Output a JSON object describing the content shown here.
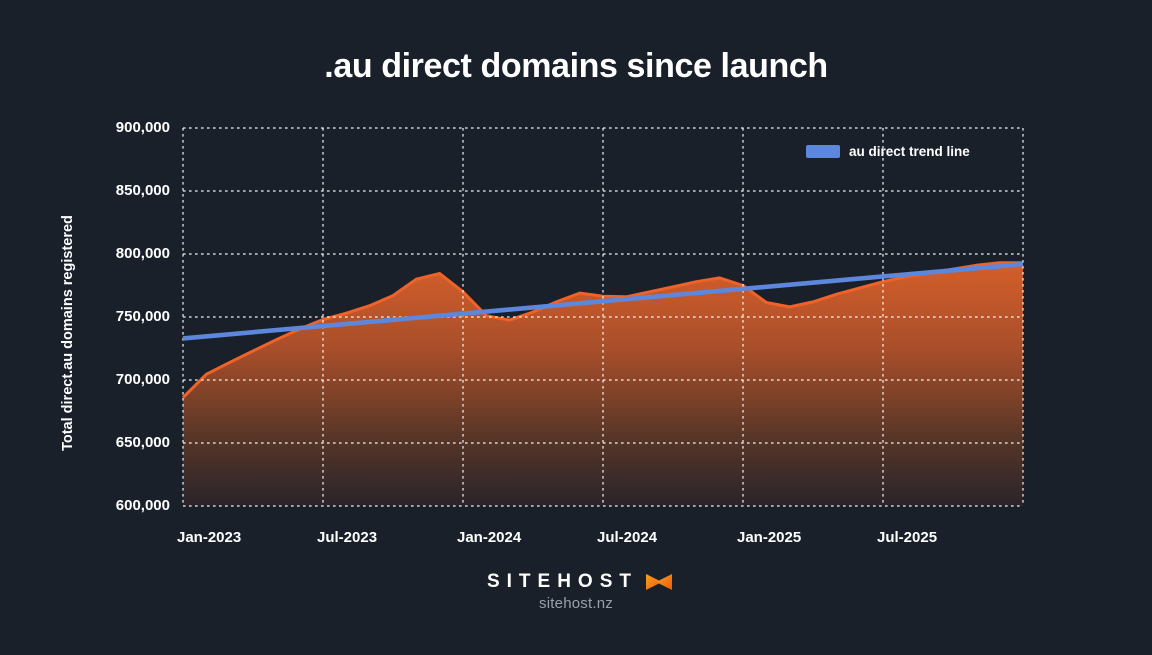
{
  "page": {
    "background_color": "#1a202a",
    "text_color": "#ffffff"
  },
  "chart_data": {
    "type": "area",
    "title": ".au direct domains since launch",
    "ylabel": "Total direct.au domains registered",
    "ylim": [
      600000,
      900000
    ],
    "ytick_step": 50000,
    "ytick_labels": [
      "900,000",
      "850,000",
      "800,000",
      "750,000",
      "700,000",
      "650,000",
      "600,000"
    ],
    "xtick_labels": [
      "Jan-2023",
      "Jul-2023",
      "Jan-2024",
      "Jul-2024",
      "Jan-2025",
      "Jul-2025"
    ],
    "grid": "dashed-white-on-dark",
    "legend": {
      "position": "top-right",
      "entries": [
        {
          "label": "au direct trend line",
          "color": "#5c87dc"
        }
      ]
    },
    "x": [
      "Jan-2023",
      "Feb-2023",
      "Mar-2023",
      "Apr-2023",
      "May-2023",
      "Jun-2023",
      "Jul-2023",
      "Aug-2023",
      "Sep-2023",
      "Oct-2023",
      "Nov-2023",
      "Dec-2023",
      "Jan-2024",
      "Feb-2024",
      "Mar-2024",
      "Apr-2024",
      "May-2024",
      "Jun-2024",
      "Jul-2024",
      "Aug-2024",
      "Sep-2024",
      "Oct-2024",
      "Nov-2024",
      "Dec-2024",
      "Jan-2025",
      "Feb-2025",
      "Mar-2025",
      "Apr-2025",
      "May-2025",
      "Jun-2025",
      "Jul-2025",
      "Aug-2025",
      "Sep-2025",
      "Oct-2025",
      "Nov-2025",
      "Dec-2025"
    ],
    "series": [
      {
        "name": "Total direct .au domains registered",
        "type": "area",
        "stroke_color": "#ef6228",
        "fill_gradient": [
          "#d8602a",
          "#a84e2a",
          "#553527",
          "#2a232b"
        ],
        "values": [
          686000,
          704500,
          714000,
          723000,
          732000,
          740500,
          748000,
          753000,
          759000,
          767000,
          780000,
          784500,
          770000,
          751000,
          747500,
          754000,
          762000,
          769000,
          766500,
          766000,
          770000,
          774000,
          778000,
          781000,
          775000,
          761500,
          758000,
          762000,
          768000,
          773000,
          778000,
          782000,
          785000,
          788000,
          791000,
          793000
        ]
      },
      {
        "name": "au direct trend line",
        "type": "trend-line",
        "color": "#5c87dc",
        "start_value": 733000,
        "end_value": 792000
      }
    ]
  },
  "footer": {
    "brand": "SITEHOST",
    "domain": "sitehost.nz",
    "logo_colors": [
      "#f7a21b",
      "#ee5a10"
    ]
  }
}
